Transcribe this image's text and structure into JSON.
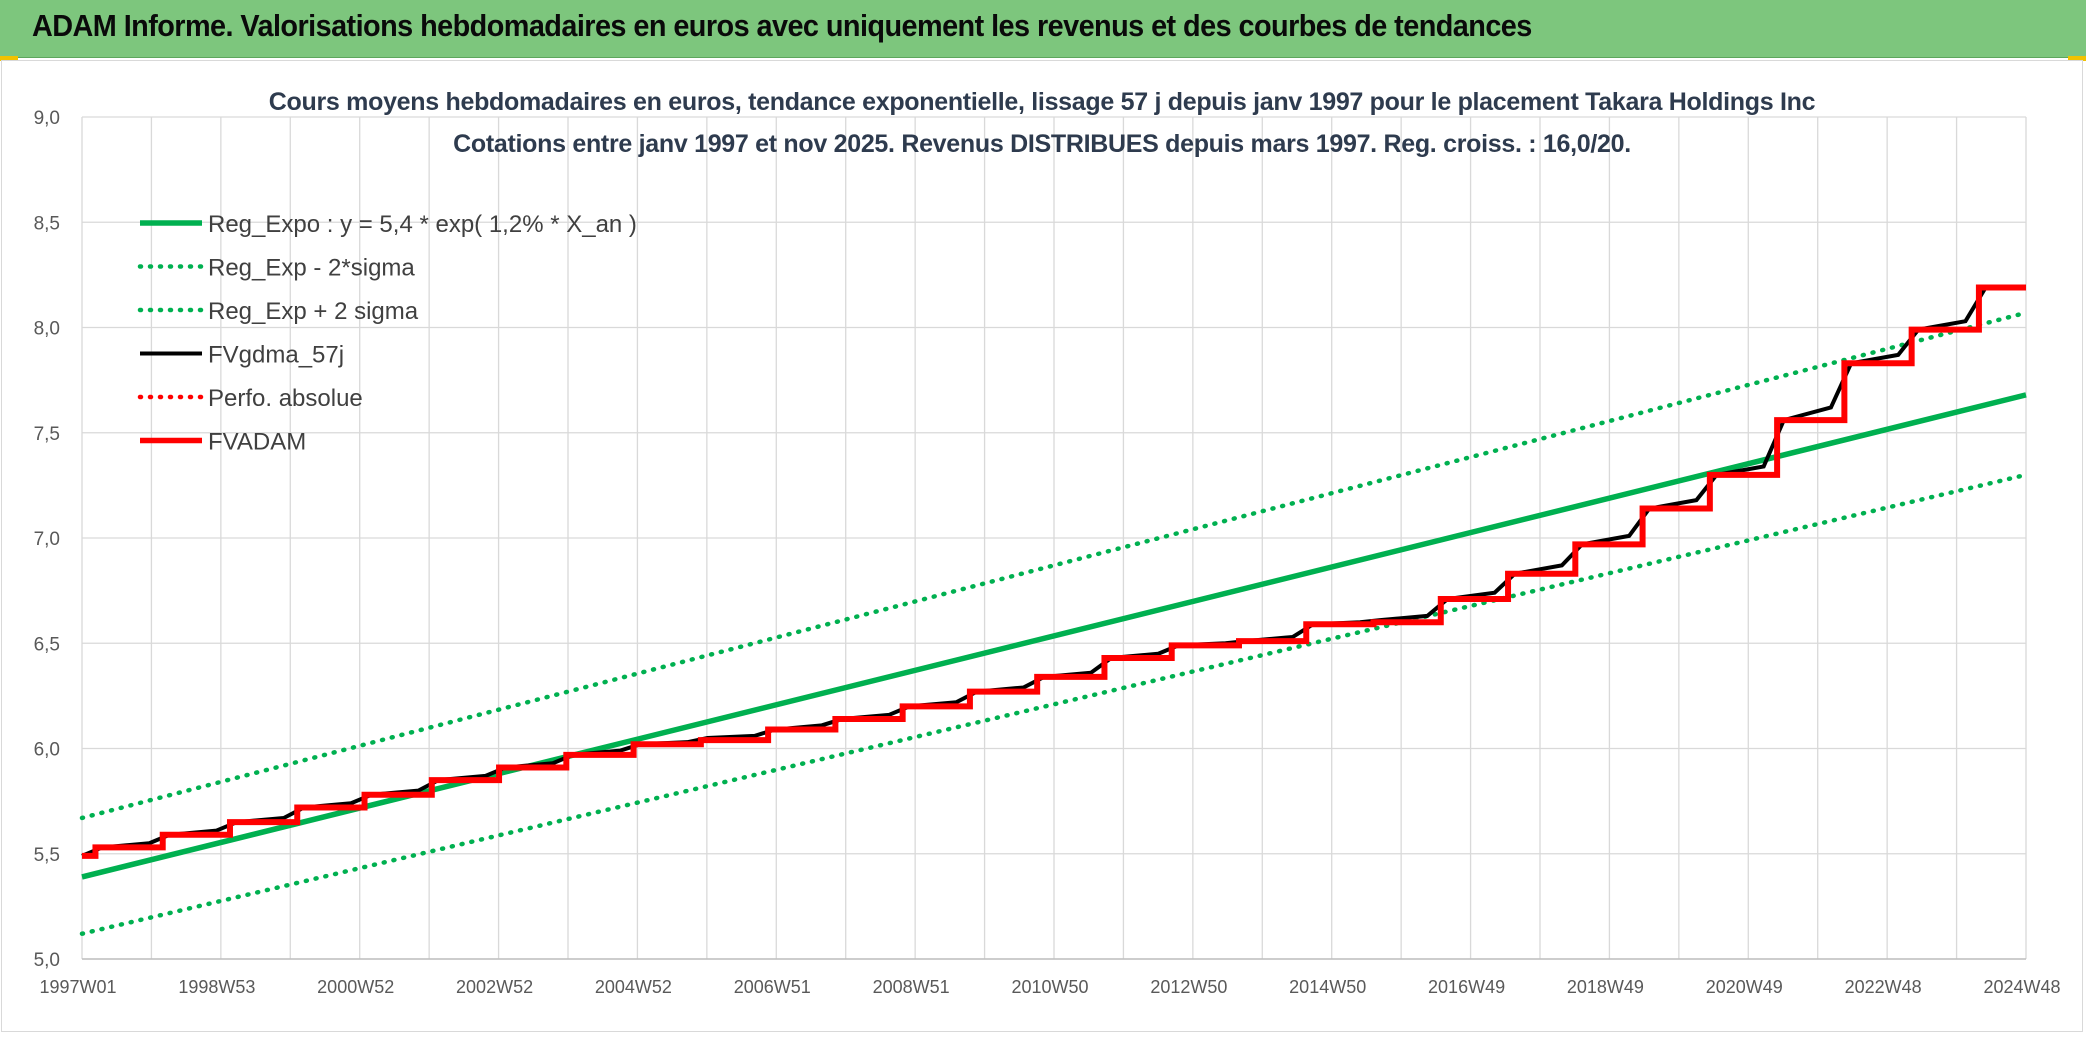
{
  "header": {
    "title": "ADAM Informe. Valorisations hebdomadaires en euros avec uniquement les revenus et des courbes de tendances"
  },
  "colors": {
    "banner": "#7dc67d",
    "trend": "#00b050",
    "fv": "#000000",
    "adam": "#ff0000",
    "grid": "#d9d9d9"
  },
  "chart_data": {
    "type": "line",
    "title": "Cours moyens hebdomadaires en euros, tendance exponentielle, lissage 57 j depuis janv 1997 pour le placement Takara Holdings Inc",
    "subtitle": "Cotations entre janv 1997 et nov 2025. Revenus DISTRIBUES depuis mars 1997. Reg. croiss. : 16,0/20.",
    "xlabel": "",
    "ylabel": "",
    "ylim": [
      5.0,
      9.0
    ],
    "xlim": [
      1997.0,
      2025.9
    ],
    "y_ticks": [
      "5,0",
      "5,5",
      "6,0",
      "6,5",
      "7,0",
      "7,5",
      "8,0",
      "8,5",
      "9,0"
    ],
    "x_tick_labels": [
      "1997W01",
      "1998W53",
      "2000W52",
      "2002W52",
      "2004W52",
      "2006W51",
      "2008W51",
      "2010W50",
      "2012W50",
      "2014W50",
      "2016W49",
      "2018W49",
      "2020W49",
      "2022W48",
      "2024W48"
    ],
    "grid": true,
    "legend_position": "top-left",
    "series": [
      {
        "name": "Reg_Expo : y = 5,4 * exp( 1,2% *  X_an )",
        "style": "solid",
        "color": "#00b050",
        "points": [
          [
            1997.0,
            5.39
          ],
          [
            2025.9,
            7.68
          ]
        ]
      },
      {
        "name": "Reg_Exp - 2*sigma",
        "style": "dotted",
        "color": "#00b050",
        "points": [
          [
            1997.0,
            5.12
          ],
          [
            2025.9,
            7.3
          ]
        ]
      },
      {
        "name": "Reg_Exp + 2 sigma",
        "style": "dotted",
        "color": "#00b050",
        "points": [
          [
            1997.0,
            5.67
          ],
          [
            2025.9,
            8.07
          ]
        ]
      },
      {
        "name": "FVgdma_57j",
        "style": "solid",
        "color": "#000000",
        "points": [
          [
            1997.0,
            5.49
          ],
          [
            1997.3,
            5.53
          ],
          [
            1998.0,
            5.55
          ],
          [
            1998.3,
            5.59
          ],
          [
            1999.0,
            5.61
          ],
          [
            1999.3,
            5.65
          ],
          [
            2000.0,
            5.67
          ],
          [
            2000.3,
            5.72
          ],
          [
            2001.0,
            5.74
          ],
          [
            2001.3,
            5.78
          ],
          [
            2002.0,
            5.8
          ],
          [
            2002.3,
            5.85
          ],
          [
            2003.0,
            5.87
          ],
          [
            2003.3,
            5.91
          ],
          [
            2004.0,
            5.93
          ],
          [
            2004.3,
            5.97
          ],
          [
            2005.0,
            5.99
          ],
          [
            2005.3,
            6.02
          ],
          [
            2006.0,
            6.03
          ],
          [
            2006.3,
            6.05
          ],
          [
            2007.0,
            6.06
          ],
          [
            2007.3,
            6.09
          ],
          [
            2008.0,
            6.11
          ],
          [
            2008.3,
            6.14
          ],
          [
            2009.0,
            6.16
          ],
          [
            2009.3,
            6.2
          ],
          [
            2010.0,
            6.22
          ],
          [
            2010.3,
            6.27
          ],
          [
            2011.0,
            6.29
          ],
          [
            2011.3,
            6.34
          ],
          [
            2012.0,
            6.36
          ],
          [
            2012.3,
            6.43
          ],
          [
            2013.0,
            6.45
          ],
          [
            2013.3,
            6.49
          ],
          [
            2014.0,
            6.5
          ],
          [
            2014.3,
            6.51
          ],
          [
            2015.0,
            6.53
          ],
          [
            2015.3,
            6.59
          ],
          [
            2016.0,
            6.6
          ],
          [
            2016.3,
            6.61
          ],
          [
            2017.0,
            6.63
          ],
          [
            2017.3,
            6.71
          ],
          [
            2018.0,
            6.74
          ],
          [
            2018.3,
            6.83
          ],
          [
            2019.0,
            6.87
          ],
          [
            2019.3,
            6.97
          ],
          [
            2020.0,
            7.01
          ],
          [
            2020.3,
            7.14
          ],
          [
            2021.0,
            7.18
          ],
          [
            2021.3,
            7.3
          ],
          [
            2022.0,
            7.34
          ],
          [
            2022.3,
            7.56
          ],
          [
            2023.0,
            7.62
          ],
          [
            2023.3,
            7.83
          ],
          [
            2024.0,
            7.87
          ],
          [
            2024.3,
            7.99
          ],
          [
            2025.0,
            8.03
          ],
          [
            2025.3,
            8.19
          ],
          [
            2025.9,
            8.19
          ]
        ]
      },
      {
        "name": "Perfo. absolue",
        "style": "dotted",
        "color": "#ff0000",
        "points": []
      },
      {
        "name": "FVADAM",
        "style": "step",
        "color": "#ff0000",
        "points": [
          [
            1997.0,
            5.49
          ],
          [
            1997.2,
            5.53
          ],
          [
            1998.2,
            5.59
          ],
          [
            1999.2,
            5.65
          ],
          [
            2000.2,
            5.72
          ],
          [
            2001.2,
            5.78
          ],
          [
            2002.2,
            5.85
          ],
          [
            2003.2,
            5.91
          ],
          [
            2004.2,
            5.97
          ],
          [
            2005.2,
            6.02
          ],
          [
            2006.2,
            6.04
          ],
          [
            2007.2,
            6.09
          ],
          [
            2008.2,
            6.14
          ],
          [
            2009.2,
            6.2
          ],
          [
            2010.2,
            6.27
          ],
          [
            2011.2,
            6.34
          ],
          [
            2012.2,
            6.43
          ],
          [
            2013.2,
            6.49
          ],
          [
            2014.2,
            6.51
          ],
          [
            2015.2,
            6.59
          ],
          [
            2016.2,
            6.6
          ],
          [
            2017.2,
            6.71
          ],
          [
            2018.2,
            6.83
          ],
          [
            2019.2,
            6.97
          ],
          [
            2020.2,
            7.14
          ],
          [
            2021.2,
            7.3
          ],
          [
            2022.2,
            7.56
          ],
          [
            2023.2,
            7.83
          ],
          [
            2024.2,
            7.99
          ],
          [
            2025.2,
            8.19
          ],
          [
            2025.9,
            8.19
          ]
        ]
      }
    ]
  }
}
